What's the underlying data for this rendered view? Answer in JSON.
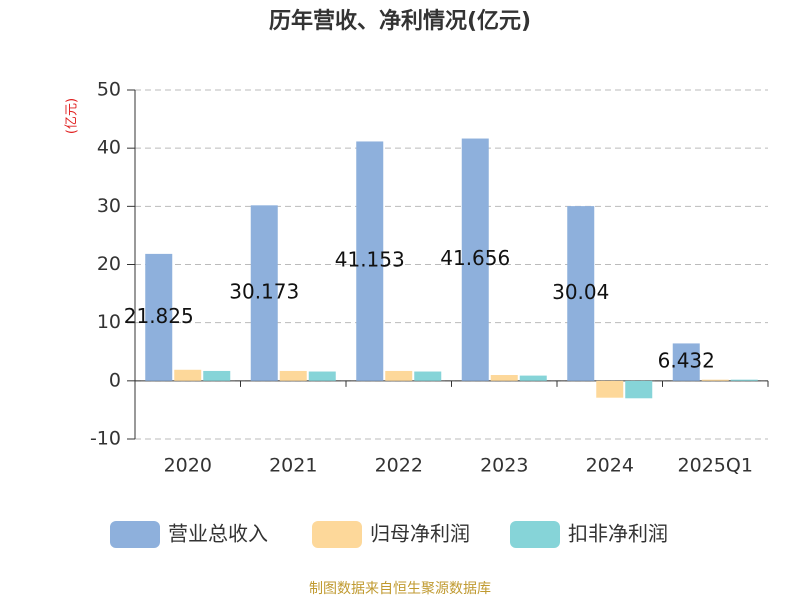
{
  "chart_data": {
    "type": "bar",
    "title": "历年营收、净利情况(亿元)",
    "y_label": "(亿元)",
    "source": "制图数据来自恒生聚源数据库",
    "categories": [
      "2020",
      "2021",
      "2022",
      "2023",
      "2024",
      "2025Q1"
    ],
    "series": [
      {
        "name": "营业总收入",
        "color": "#8eb0dc",
        "values": [
          21.825,
          30.173,
          41.153,
          41.656,
          30.04,
          6.432
        ],
        "show_labels": true
      },
      {
        "name": "归母净利润",
        "color": "#fdd89a",
        "values": [
          1.9,
          1.7,
          1.7,
          1.0,
          -2.9,
          0.2
        ]
      },
      {
        "name": "扣非净利润",
        "color": "#86d4d8",
        "values": [
          1.7,
          1.6,
          1.6,
          0.9,
          -3.0,
          0.2
        ]
      }
    ],
    "ylim": [
      -10,
      50
    ],
    "yticks": [
      -10,
      0,
      10,
      20,
      30,
      40,
      50
    ],
    "grid": true
  }
}
